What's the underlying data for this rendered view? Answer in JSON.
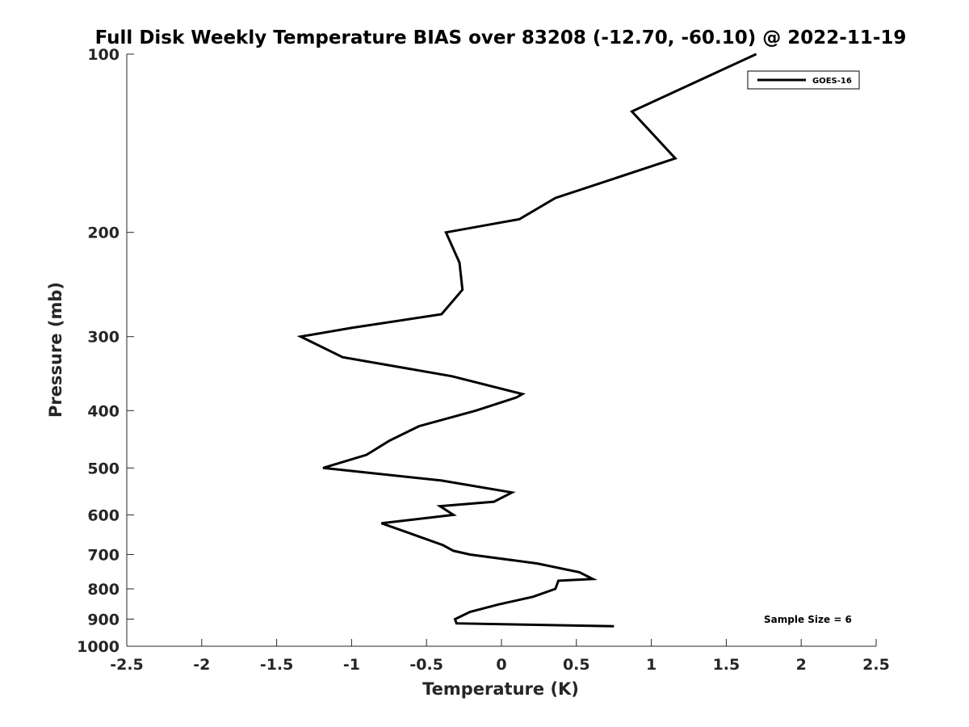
{
  "chart_data": {
    "type": "line",
    "title": "Full Disk Weekly Temperature BIAS over 83208 (-12.70, -60.10) @ 2022-11-19",
    "xlabel": "Temperature (K)",
    "ylabel": "Pressure (mb)",
    "xlim": [
      -2.5,
      2.5
    ],
    "ylim": [
      100,
      1000
    ],
    "y_scale": "log",
    "y_reversed": true,
    "x_ticks": [
      -2.5,
      -2,
      -1.5,
      -1,
      -0.5,
      0,
      0.5,
      1,
      1.5,
      2,
      2.5
    ],
    "x_tick_labels": [
      "-2.5",
      "-2",
      "-1.5",
      "-1",
      "-0.5",
      "0",
      "0.5",
      "1",
      "1.5",
      "2",
      "2.5"
    ],
    "y_ticks": [
      100,
      200,
      300,
      400,
      500,
      600,
      700,
      800,
      900,
      1000
    ],
    "y_tick_labels": [
      "100",
      "200",
      "300",
      "400",
      "500",
      "600",
      "700",
      "800",
      "900",
      "1000"
    ],
    "grid": false,
    "legend_position": "top-right",
    "series": [
      {
        "name": "GOES-16",
        "color": "#000000",
        "points": [
          [
            1.7,
            100
          ],
          [
            0.87,
            125
          ],
          [
            1.16,
            150
          ],
          [
            0.36,
            175
          ],
          [
            0.12,
            190
          ],
          [
            -0.37,
            200
          ],
          [
            -0.28,
            225
          ],
          [
            -0.26,
            250
          ],
          [
            -0.4,
            275
          ],
          [
            -1.0,
            290
          ],
          [
            -1.34,
            300
          ],
          [
            -1.06,
            325
          ],
          [
            -0.33,
            350
          ],
          [
            0.14,
            375
          ],
          [
            0.1,
            380
          ],
          [
            -0.17,
            400
          ],
          [
            -0.55,
            425
          ],
          [
            -0.75,
            450
          ],
          [
            -0.9,
            475
          ],
          [
            -1.19,
            500
          ],
          [
            -0.4,
            525
          ],
          [
            0.07,
            550
          ],
          [
            -0.05,
            570
          ],
          [
            -0.41,
            580
          ],
          [
            -0.32,
            600
          ],
          [
            -0.8,
            620
          ],
          [
            -0.57,
            650
          ],
          [
            -0.39,
            675
          ],
          [
            -0.32,
            690
          ],
          [
            -0.21,
            700
          ],
          [
            0.24,
            725
          ],
          [
            0.52,
            750
          ],
          [
            0.61,
            770
          ],
          [
            0.38,
            775
          ],
          [
            0.36,
            800
          ],
          [
            0.21,
            825
          ],
          [
            -0.02,
            850
          ],
          [
            -0.21,
            875
          ],
          [
            -0.31,
            900
          ],
          [
            -0.3,
            915
          ],
          [
            0.75,
            925
          ]
        ]
      }
    ],
    "annotations": [
      "Sample Size = 6"
    ]
  }
}
